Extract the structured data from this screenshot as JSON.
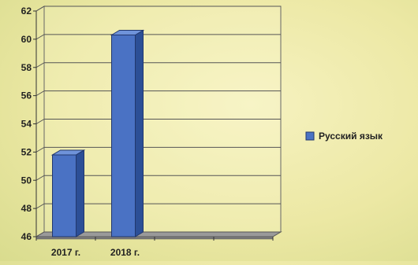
{
  "chart_data": {
    "type": "bar",
    "categories": [
      "2017 г.",
      "2018 г."
    ],
    "series": [
      {
        "name": "Русский язык",
        "values": [
          51.8,
          60.3
        ],
        "color": "#4a72c4"
      }
    ],
    "ylim": [
      46,
      62
    ],
    "y_ticks": [
      46,
      48,
      50,
      52,
      54,
      56,
      58,
      60,
      62
    ],
    "x_slots": 4,
    "grid": true,
    "legend_position": "right",
    "style": "3d-bar"
  }
}
